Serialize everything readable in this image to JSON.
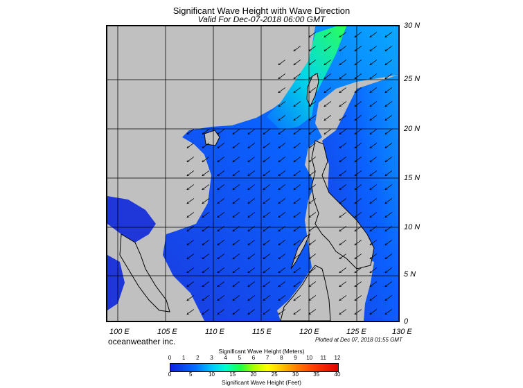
{
  "header": {
    "title": "Significant Wave Height with Wave Direction",
    "subtitle": "Valid For Dec-07-2018 06:00 GMT"
  },
  "axes": {
    "lat_labels": [
      "30 N",
      "25 N",
      "20 N",
      "15 N",
      "10 N",
      "5 N",
      "0"
    ],
    "lon_labels": [
      "100 E",
      "105 E",
      "110 E",
      "115 E",
      "120 E",
      "125 E",
      "130 E"
    ]
  },
  "footer": {
    "credit": "oceanweather inc.",
    "plotted": "Plotted at Dec 07, 2018 01:55 GMT"
  },
  "colorbar": {
    "meters_title": "Significant Wave Height (Meters)",
    "meters_ticks": [
      "0",
      "1",
      "2",
      "3",
      "4",
      "5",
      "6",
      "7",
      "8",
      "9",
      "10",
      "11",
      "12"
    ],
    "feet_ticks": [
      "0",
      "5",
      "10",
      "15",
      "20",
      "25",
      "30",
      "35",
      "40"
    ],
    "feet_title": "Significant Wave Height (Feet)"
  },
  "colors": {
    "land": "#c0c0c0",
    "sea_low": "#1a3fe0",
    "sea_mid": "#0a6cff",
    "sea_high": "#00e8d8",
    "sea_peak": "#2bff5a",
    "arrow": "#000000"
  }
}
